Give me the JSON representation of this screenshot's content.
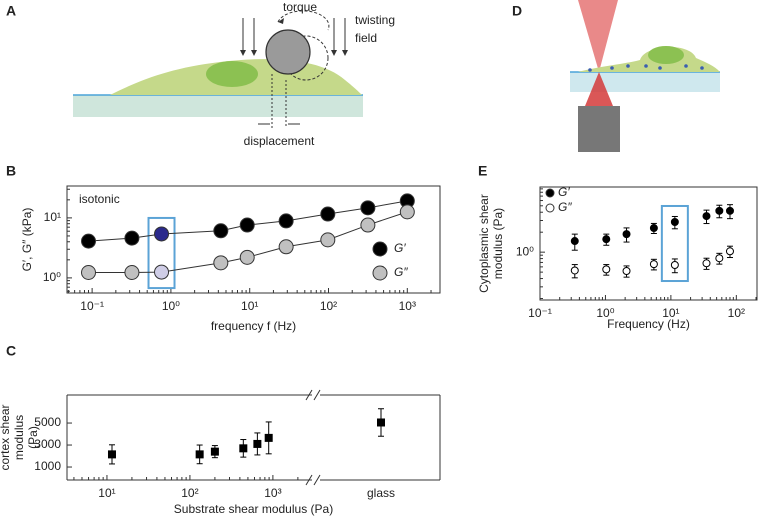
{
  "diagram_a": {
    "panel": "A",
    "torque": "torque",
    "field_line1": "twisting",
    "field_line2": "field",
    "displacement": "displacement"
  },
  "diagram_d": {
    "panel": "D"
  },
  "chart_data": [
    {
      "type": "scatter",
      "panel": "B",
      "annotation": "isotonic",
      "y_label": "G′, G″ (kPa)",
      "x_label": "frequency f (Hz)",
      "log_x": true,
      "log_y": true,
      "lines": true,
      "xlim": [
        0.048,
        2600
      ],
      "ylim": [
        0.56,
        34
      ],
      "xticks": [
        {
          "value": 0.1,
          "label": "10⁻¹"
        },
        {
          "value": 1,
          "label": "10⁰"
        },
        {
          "value": 10,
          "label": "10¹"
        },
        {
          "value": 100,
          "label": "10²"
        },
        {
          "value": 1000,
          "label": "10³"
        }
      ],
      "yticks": [
        {
          "value": 1,
          "label": "10⁰"
        },
        {
          "value": 10,
          "label": "10¹"
        }
      ],
      "x": [
        0.09,
        0.32,
        0.76,
        4.3,
        9.3,
        29,
        98,
        316,
        1000
      ],
      "highlight_index": 2,
      "highlight_color": "#5ba3d6",
      "series": [
        {
          "name": "G′",
          "color": "#000000",
          "point_colors": [
            "#000000",
            "#000000",
            "#2b2a8c",
            "#000000",
            "#000000",
            "#000000",
            "#000000",
            "#000000",
            "#000000"
          ],
          "values": [
            4.1,
            4.6,
            5.4,
            6.1,
            7.6,
            8.9,
            11.6,
            14.7,
            19.2
          ]
        },
        {
          "name": "G″",
          "color": "#c0c0c0",
          "point_colors": [
            "#c0c0c0",
            "#c0c0c0",
            "#cfcde6",
            "#c0c0c0",
            "#c0c0c0",
            "#c0c0c0",
            "#c0c0c0",
            "#c0c0c0",
            "#c0c0c0"
          ],
          "values": [
            1.23,
            1.23,
            1.25,
            1.78,
            2.2,
            3.3,
            4.3,
            7.6,
            12.6
          ]
        }
      ]
    },
    {
      "type": "scatter",
      "panel": "C",
      "y_label": [
        "cortex shear",
        "modulus",
        "(Pa)"
      ],
      "x_label": "Substrate shear modulus (Pa)",
      "log_x": true,
      "xlim": [
        3.3,
        2800
      ],
      "ylim": [
        -180,
        7550
      ],
      "xticks": [
        {
          "value": 10,
          "label": "10¹"
        },
        {
          "value": 100,
          "label": "10²"
        },
        {
          "value": 1000,
          "label": "10³"
        }
      ],
      "yticks": [
        1000,
        3000,
        5000
      ],
      "x": [
        11.5,
        131,
        200,
        440,
        650,
        890
      ],
      "values": [
        2150,
        2150,
        2400,
        2700,
        3100,
        3650
      ],
      "errors": [
        870,
        850,
        550,
        800,
        1000,
        1450
      ],
      "color": "#000000",
      "glass": {
        "label": "glass",
        "value": 5050,
        "error": 1250
      }
    },
    {
      "type": "scatter",
      "panel": "E",
      "y_label": [
        "Cytoplasmic shear",
        "modulus (Pa)"
      ],
      "x_label": "Frequency (Hz)",
      "log_x": true,
      "log_y": true,
      "xlim": [
        0.1,
        207
      ],
      "ylim": [
        0.19,
        9.6
      ],
      "xticks": [
        {
          "value": 0.1,
          "label": "10⁻¹"
        },
        {
          "value": 1,
          "label": "10⁰"
        },
        {
          "value": 10,
          "label": "10¹"
        },
        {
          "value": 100,
          "label": "10²"
        }
      ],
      "yticks": [
        {
          "value": 1,
          "label": "10⁰"
        }
      ],
      "x": [
        0.34,
        1.03,
        2.1,
        5.5,
        11.5,
        35,
        55,
        80
      ],
      "highlight_index": 4,
      "highlight_color": "#5ba3d6",
      "series": [
        {
          "name": "G′",
          "color": "#000000",
          "filled": true,
          "values": [
            1.47,
            1.57,
            1.87,
            2.31,
            2.85,
            3.5,
            4.2,
            4.2
          ],
          "errors": [
            0.4,
            0.3,
            0.45,
            0.4,
            0.6,
            0.8,
            0.9,
            1.0
          ]
        },
        {
          "name": "G″",
          "color": "#000000",
          "filled": false,
          "values": [
            0.53,
            0.55,
            0.52,
            0.66,
            0.64,
            0.68,
            0.81,
            1.03
          ],
          "errors": [
            0.12,
            0.1,
            0.1,
            0.12,
            0.15,
            0.13,
            0.15,
            0.2
          ]
        }
      ]
    }
  ]
}
